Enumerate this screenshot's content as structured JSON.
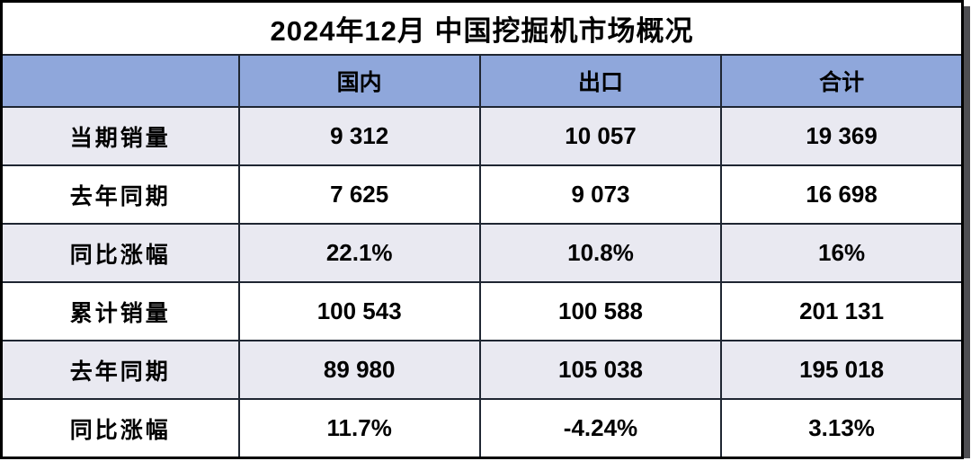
{
  "chart_data": {
    "type": "table",
    "title": "2024年12月 中国挖掘机市场概况",
    "columns": [
      "",
      "国内",
      "出口",
      "合计"
    ],
    "rows": [
      {
        "label": "当期销量",
        "values": [
          "9 312",
          "10 057",
          "19 369"
        ]
      },
      {
        "label": "去年同期",
        "values": [
          "7 625",
          "9 073",
          "16 698"
        ]
      },
      {
        "label": "同比涨幅",
        "values": [
          "22.1%",
          "10.8%",
          "16%"
        ]
      },
      {
        "label": "累计销量",
        "values": [
          "100 543",
          "100 588",
          "201 131"
        ]
      },
      {
        "label": "去年同期",
        "values": [
          "89 980",
          "105 038",
          "195 018"
        ]
      },
      {
        "label": "同比涨幅",
        "values": [
          "11.7%",
          "-4.24%",
          "3.13%"
        ]
      }
    ],
    "layout": {
      "legend": "none",
      "grid": "on"
    }
  },
  "colors": {
    "header_bg": "#8fa7db",
    "row_alt_bg": "#e9e9f1",
    "row_bg": "#ffffff",
    "title_bg": "#ffffff",
    "border": "#1f2632",
    "outer_border": "#000000",
    "shadow": "#4e4e52",
    "text": "#000000"
  }
}
